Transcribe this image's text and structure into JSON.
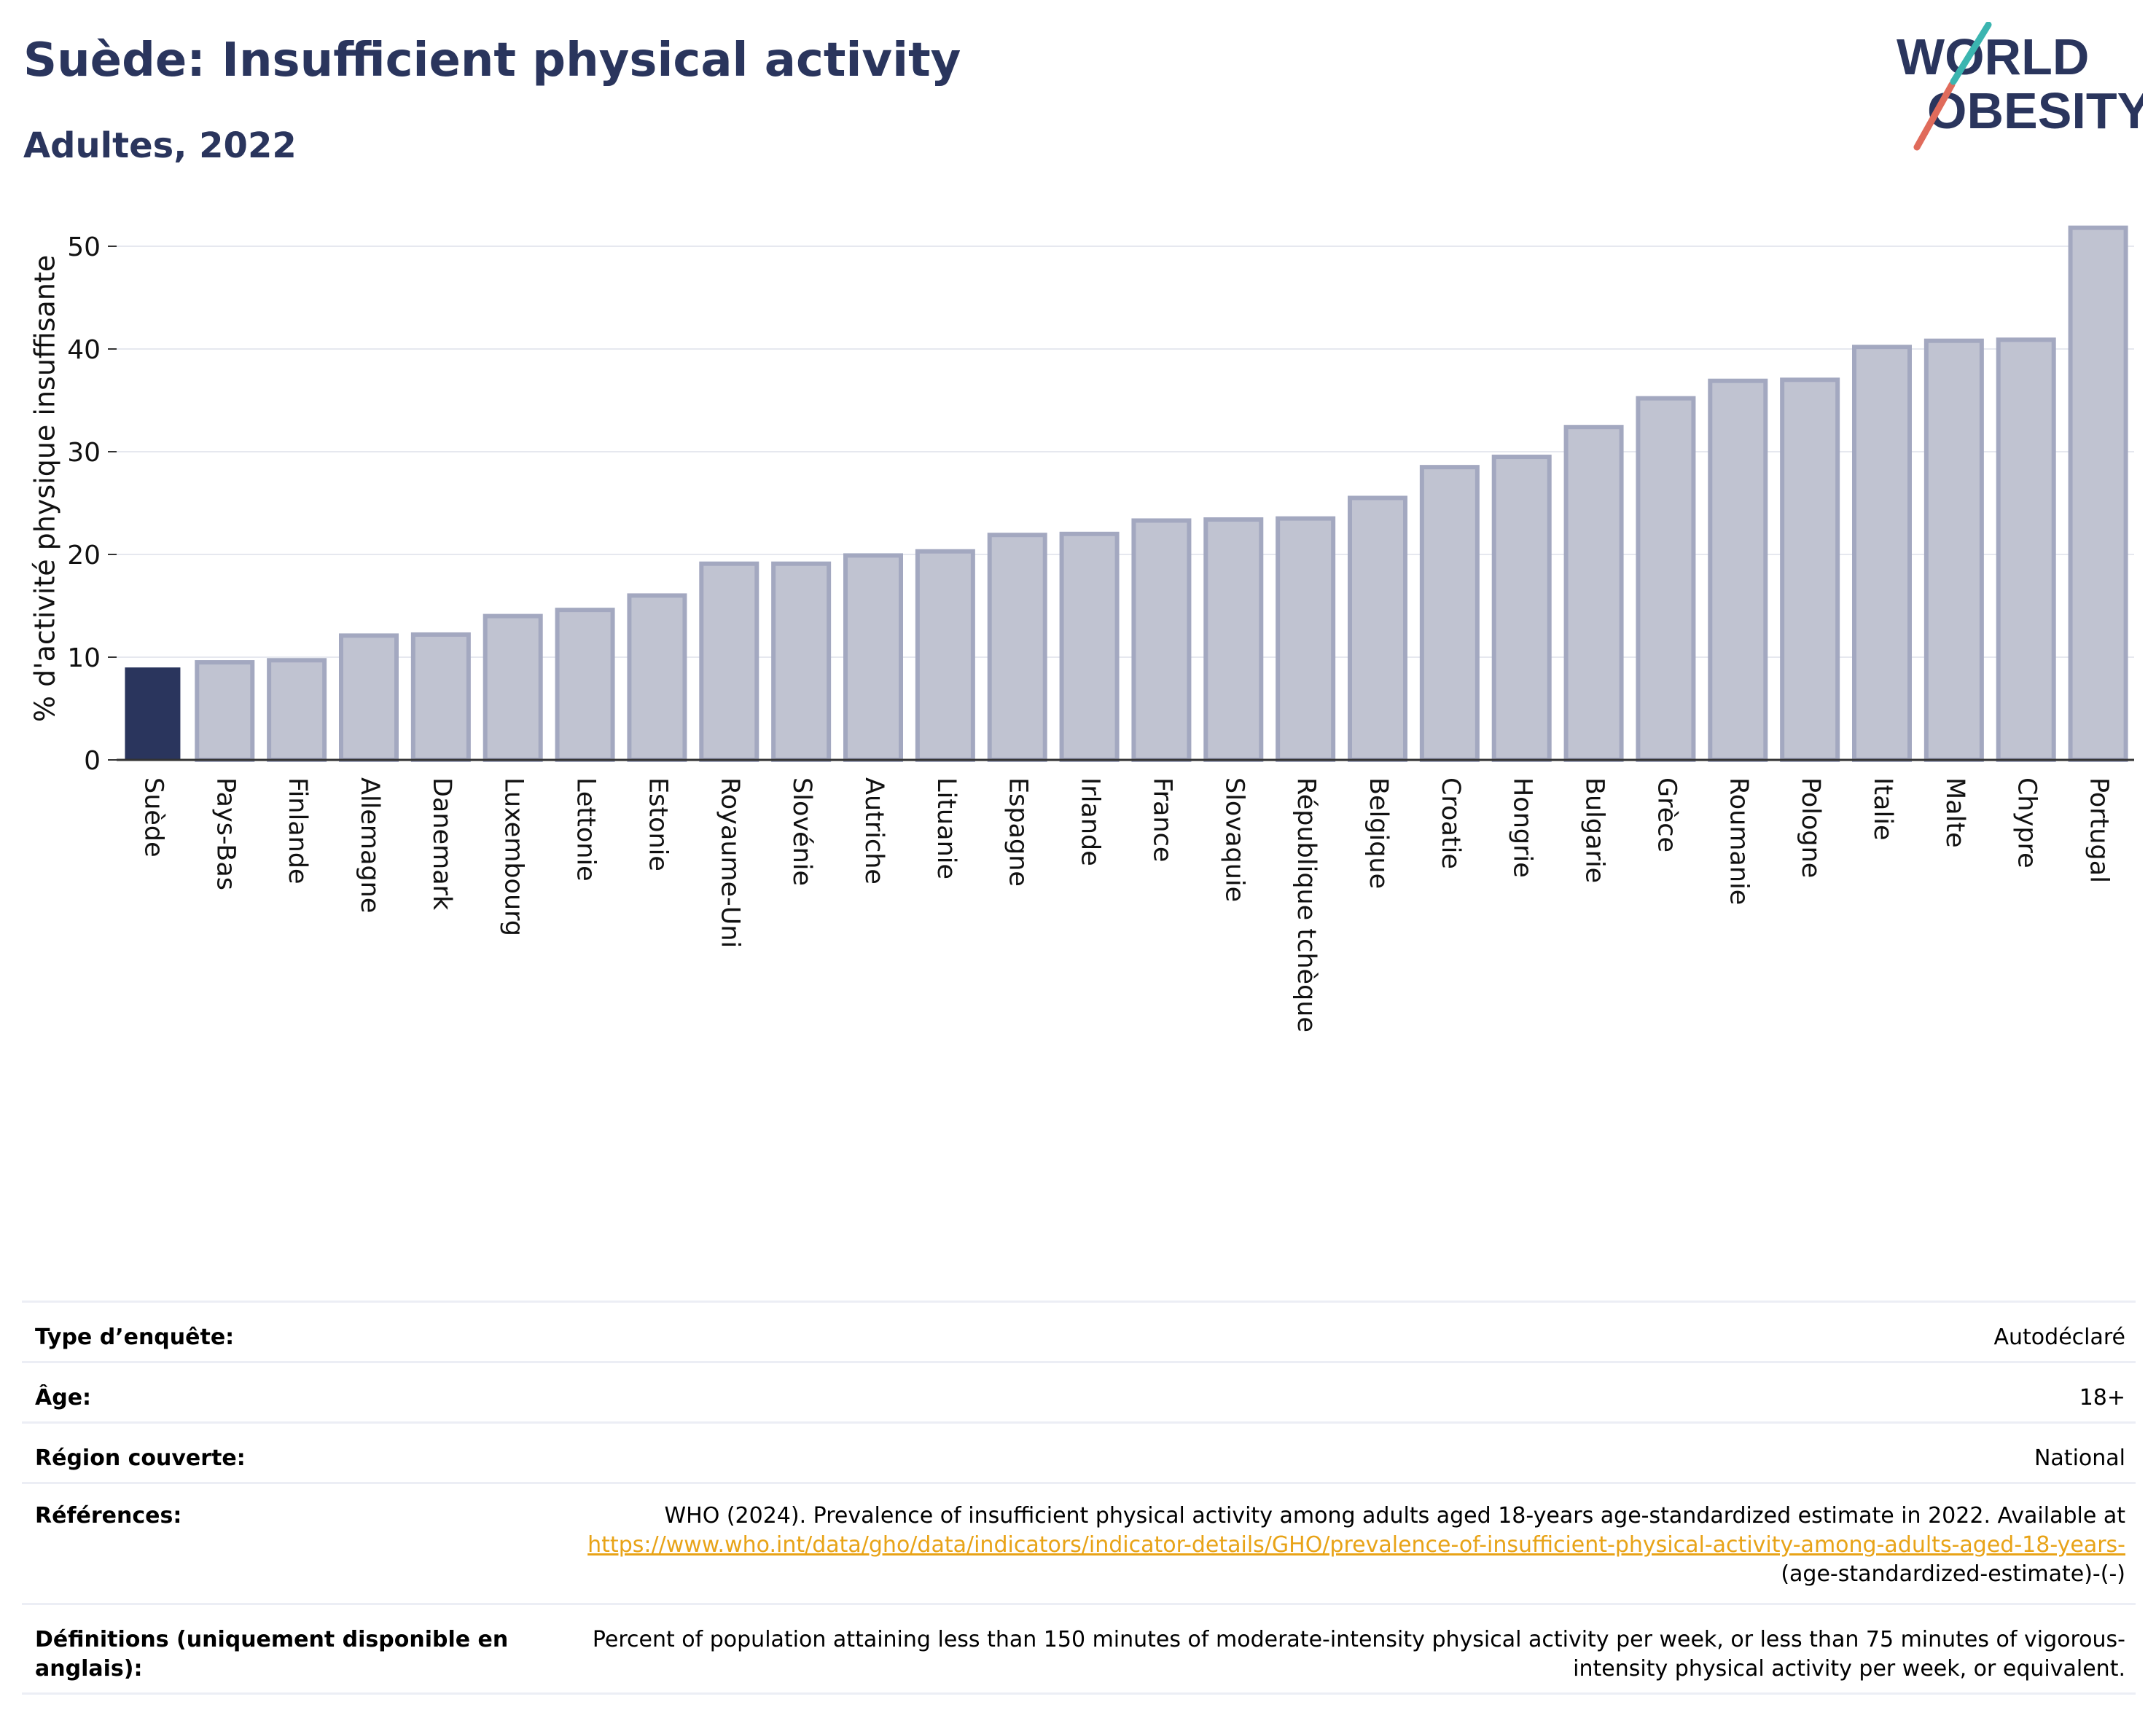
{
  "header": {
    "title": "Suède: Insufficient physical activity",
    "subtitle": "Adultes, 2022"
  },
  "logo": {
    "line1": "WORLD",
    "line2": "OBESITY"
  },
  "colors": {
    "highlight_bar": "#2a355d",
    "other_bar": "#c0c3d1",
    "bar_outline": "#a3a8c0",
    "title": "#2a355d",
    "link": "#e8a317",
    "logo_slash_red": "#e06b5b",
    "logo_slash_teal": "#3bb5b0"
  },
  "chart_data": {
    "type": "bar",
    "title": "Suède: Insufficient physical activity",
    "subtitle": "Adultes, 2022",
    "xlabel": "",
    "ylabel": "% d'activité physique insuffisante",
    "ylim": [
      0,
      53
    ],
    "yticks": [
      0,
      10,
      20,
      30,
      40,
      50
    ],
    "grid": true,
    "highlight": "Suède",
    "categories": [
      "Suède",
      "Pays-Bas",
      "Finlande",
      "Allemagne",
      "Danemark",
      "Luxembourg",
      "Lettonie",
      "Estonie",
      "Royaume-Uni",
      "Slovénie",
      "Autriche",
      "Lituanie",
      "Espagne",
      "Irlande",
      "France",
      "Slovaquie",
      "République tchèque",
      "Belgique",
      "Croatie",
      "Hongrie",
      "Bulgarie",
      "Grèce",
      "Roumanie",
      "Pologne",
      "Italie",
      "Malte",
      "Chypre",
      "Portugal"
    ],
    "values": [
      9.0,
      9.5,
      9.7,
      12.1,
      12.2,
      14.0,
      14.6,
      16.0,
      19.1,
      19.1,
      19.9,
      20.3,
      21.9,
      22.0,
      23.3,
      23.4,
      23.5,
      25.5,
      28.5,
      29.5,
      32.4,
      35.2,
      36.9,
      37.0,
      40.2,
      40.8,
      40.9,
      51.8
    ]
  },
  "info": {
    "survey_type": {
      "label": "Type d’enquête:",
      "value": "Autodéclaré"
    },
    "age": {
      "label": "Âge:",
      "value": "18+"
    },
    "region": {
      "label": "Région couverte:",
      "value": "National"
    },
    "references": {
      "label": "Références:",
      "text": "WHO (2024). Prevalence of insufficient physical activity among adults aged 18-years age-standardized estimate in 2022. Available at",
      "link": "https://www.who.int/data/gho/data/indicators/indicator-details/GHO/prevalence-of-insufficient-physical-activity-among-adults-aged-18-years-",
      "tail": "(age-standardized-estimate)-(-)"
    },
    "definitions": {
      "label": "Définitions (uniquement disponible en anglais):",
      "value": "Percent of population attaining less than 150 minutes of moderate-intensity physical activity per week, or less than 75 minutes of vigorous-intensity physical activity per week, or equivalent."
    }
  }
}
